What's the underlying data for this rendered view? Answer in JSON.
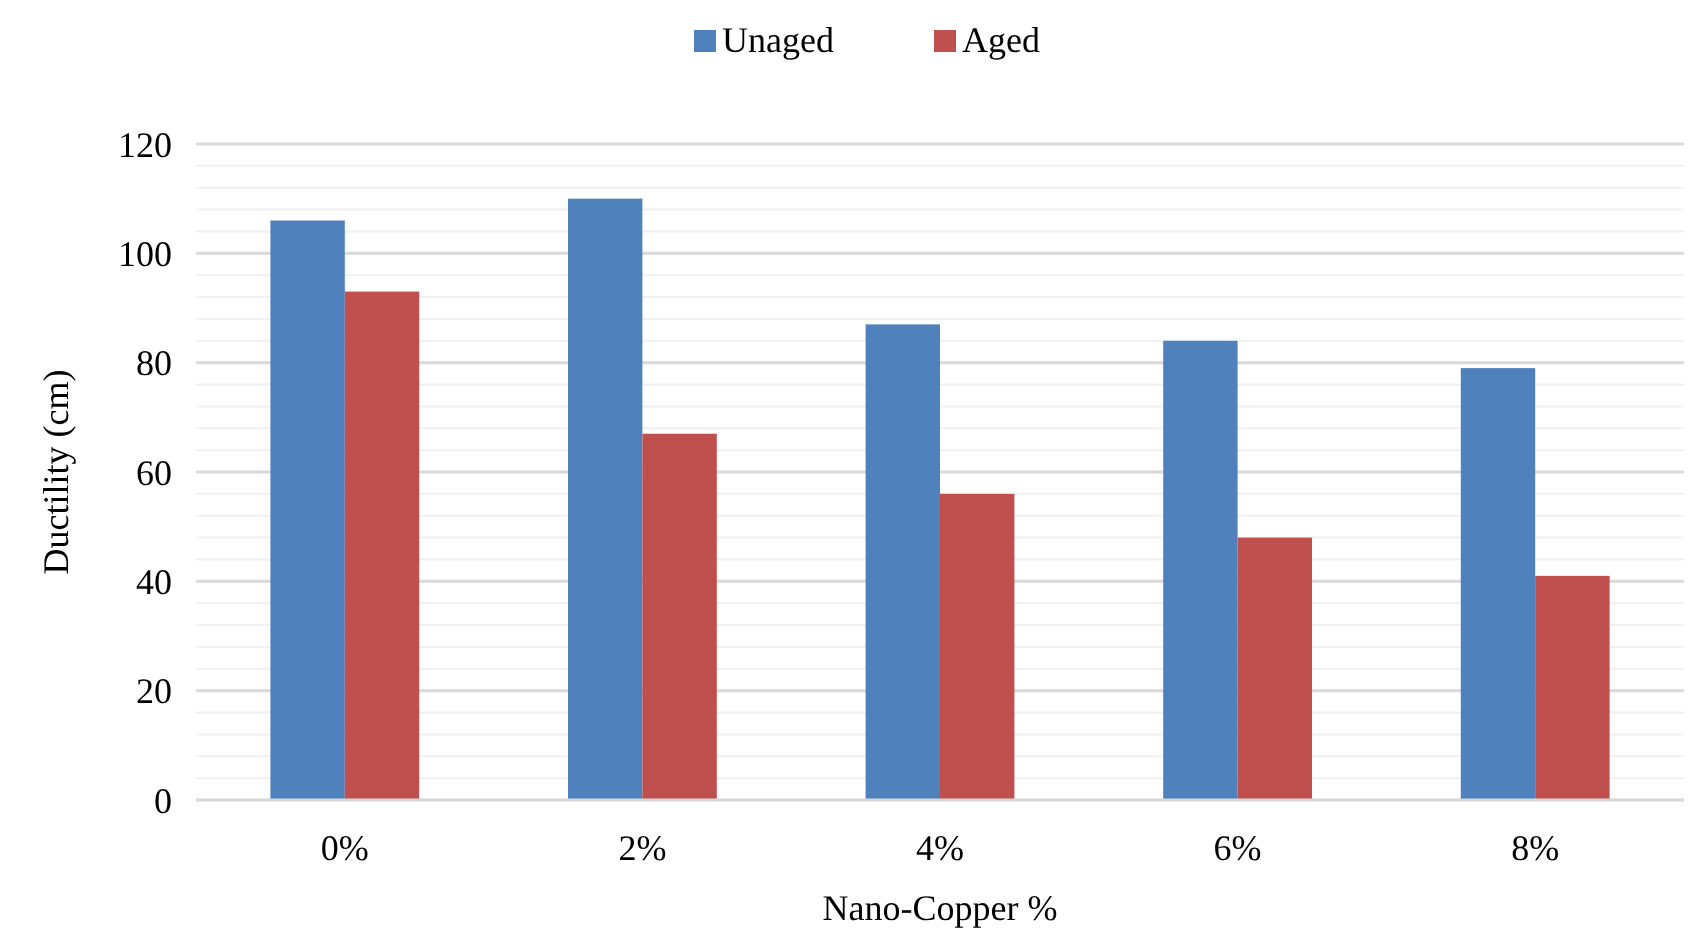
{
  "chart_data": {
    "type": "bar",
    "xlabel": "Nano-Copper %",
    "ylabel": "Ductility (cm)",
    "categories": [
      "0%",
      "2%",
      "4%",
      "6%",
      "8%"
    ],
    "series": [
      {
        "name": "Unaged",
        "color": "#4f81bd",
        "values": [
          106,
          110,
          87,
          84,
          79
        ]
      },
      {
        "name": "Aged",
        "color": "#c0504d",
        "values": [
          93,
          67,
          56,
          48,
          41
        ]
      }
    ],
    "ylim": [
      0,
      120
    ],
    "yticks": [
      0,
      {
        "value": 4,
        "label": null
      },
      {
        "value": 8,
        "label": null
      },
      {
        "value": 12,
        "label": null
      },
      {
        "value": 16,
        "label": null
      },
      20,
      {
        "value": 24,
        "label": null
      },
      {
        "value": 28,
        "label": null
      },
      {
        "value": 32,
        "label": null
      },
      {
        "value": 36,
        "label": null
      },
      40,
      {
        "value": 44,
        "label": null
      },
      {
        "value": 48,
        "label": null
      },
      {
        "value": 52,
        "label": null
      },
      {
        "value": 56,
        "label": null
      },
      60,
      {
        "value": 64,
        "label": null
      },
      {
        "value": 68,
        "label": null
      },
      {
        "value": 72,
        "label": null
      },
      {
        "value": 76,
        "label": null
      },
      80,
      {
        "value": 84,
        "label": null
      },
      {
        "value": 88,
        "label": null
      },
      {
        "value": 92,
        "label": null
      },
      {
        "value": 96,
        "label": null
      },
      100,
      {
        "value": 104,
        "label": null
      },
      {
        "value": 108,
        "label": null
      },
      {
        "value": 112,
        "label": null
      },
      {
        "value": 116,
        "label": null
      },
      120
    ],
    "grid": "y",
    "legend": "top"
  }
}
